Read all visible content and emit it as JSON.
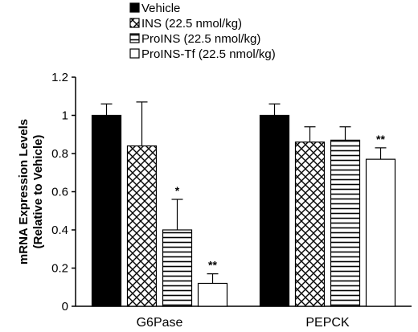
{
  "chart_data": {
    "type": "bar",
    "categories": [
      "G6Pase",
      "PEPCK"
    ],
    "series": [
      {
        "name": "Vehicle",
        "pattern": "solid",
        "values": [
          1.0,
          1.0
        ],
        "errors": [
          0.06,
          0.06
        ],
        "significance": [
          "",
          ""
        ]
      },
      {
        "name": "INS (22.5 nmol/kg)",
        "pattern": "crosshatch",
        "values": [
          0.84,
          0.86
        ],
        "errors": [
          0.23,
          0.08
        ],
        "significance": [
          "",
          ""
        ]
      },
      {
        "name": "ProINS (22.5 nmol/kg)",
        "pattern": "horizontal-lines",
        "values": [
          0.4,
          0.87
        ],
        "errors": [
          0.16,
          0.07
        ],
        "significance": [
          "*",
          ""
        ]
      },
      {
        "name": "ProINS-Tf (22.5 nmol/kg)",
        "pattern": "white",
        "values": [
          0.12,
          0.77
        ],
        "errors": [
          0.05,
          0.06
        ],
        "significance": [
          "**",
          "**"
        ]
      }
    ],
    "title": "",
    "xlabel": "",
    "ylabel_lines": [
      "mRNA Expression Levels",
      "(Relative to Vehicle)"
    ],
    "ylim": [
      0,
      1.2
    ],
    "yticks": [
      0,
      0.2,
      0.4,
      0.6,
      0.8,
      1.0,
      1.2
    ],
    "ytick_labels": [
      "0",
      "0.2",
      "0.4",
      "0.6",
      "0.8",
      "1",
      "1.2"
    ],
    "grid": false,
    "legend_position": "top"
  }
}
